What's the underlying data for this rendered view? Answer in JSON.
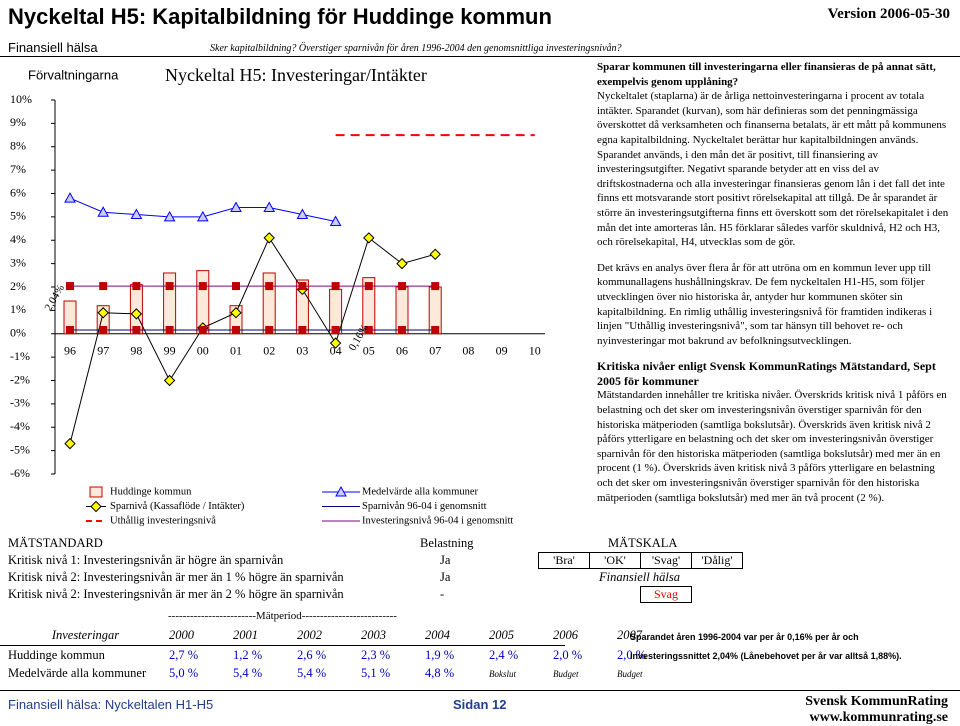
{
  "header": {
    "title": "Nyckeltal H5: Kapitalbildning för Huddinge kommun",
    "version": "Version 2006-05-30",
    "section": "Finansiell hälsa",
    "question": "Sker kapitalbildning? Överstiger sparnivån för åren 1996-2004 den genomsnittliga investeringsnivån?"
  },
  "chart_data": {
    "type": "bar",
    "title": "Nyckeltal H5: Investeringar/Intäkter",
    "corner_label": "Förvaltningarna",
    "categories": [
      "96",
      "97",
      "98",
      "99",
      "00",
      "01",
      "02",
      "03",
      "04",
      "05",
      "06",
      "07",
      "08",
      "09",
      "10"
    ],
    "series": [
      {
        "name": "Huddinge kommun",
        "kind": "bar",
        "color": "#c00000",
        "fill": "#fde9d9",
        "values": [
          1.4,
          1.2,
          2.1,
          2.6,
          2.7,
          1.2,
          2.6,
          2.3,
          1.9,
          2.4,
          2.0,
          2.0,
          null,
          null,
          null
        ]
      },
      {
        "name": "Medelvärde alla kommuner",
        "kind": "line",
        "marker": "triangle",
        "color": "#0000ff",
        "fill": "#ccccff",
        "values": [
          5.8,
          5.2,
          5.1,
          5.0,
          5.0,
          5.4,
          5.4,
          5.1,
          4.8,
          null,
          null,
          null,
          null,
          null,
          null
        ]
      },
      {
        "name": "Sparnivå (Kassaflöde / Intäkter)",
        "kind": "line",
        "marker": "diamond",
        "color": "#000000",
        "fill": "#ffff00",
        "values": [
          -4.7,
          0.9,
          0.85,
          -2.0,
          0.25,
          0.9,
          4.1,
          1.9,
          -0.4,
          4.1,
          3.0,
          3.4,
          null,
          null,
          null
        ]
      },
      {
        "name": "Sparnivån 96-04 i genomsnitt",
        "kind": "line",
        "marker": "square",
        "color": "#000080",
        "fill": "#c00000",
        "values": [
          0.16,
          0.16,
          0.16,
          0.16,
          0.16,
          0.16,
          0.16,
          0.16,
          0.16,
          0.16,
          0.16,
          0.16,
          null,
          null,
          null
        ]
      },
      {
        "name": "Uthållig investeringsnivå",
        "kind": "dashed",
        "color": "#ff0000",
        "values": [
          null,
          null,
          null,
          null,
          null,
          null,
          null,
          null,
          8.5,
          8.5,
          8.5,
          8.5,
          8.5,
          8.5,
          8.5
        ]
      },
      {
        "name": "Investeringsnivå 96-04 i genomsnitt",
        "kind": "line",
        "marker": "square",
        "color": "#800080",
        "fill": "#c00000",
        "values": [
          2.04,
          2.04,
          2.04,
          2.04,
          2.04,
          2.04,
          2.04,
          2.04,
          2.04,
          2.04,
          2.04,
          2.04,
          null,
          null,
          null
        ]
      }
    ],
    "annotations": [
      "2,04%",
      "0,16%"
    ],
    "ylim": [
      -6,
      10
    ],
    "yticks": [
      {
        "value": 10,
        "label": "10%"
      },
      {
        "value": 9,
        "label": "9%"
      },
      {
        "value": 8,
        "label": "8%"
      },
      {
        "value": 7,
        "label": "7%"
      },
      {
        "value": 6,
        "label": "6%"
      },
      {
        "value": 5,
        "label": "5%"
      },
      {
        "value": 4,
        "label": "4%"
      },
      {
        "value": 3,
        "label": "3%"
      },
      {
        "value": 2,
        "label": "2%"
      },
      {
        "value": 1,
        "label": "1%"
      },
      {
        "value": 0,
        "label": "0%"
      },
      {
        "value": -1,
        "label": "-1%"
      },
      {
        "value": -2,
        "label": "-2%"
      },
      {
        "value": -3,
        "label": "-3%"
      },
      {
        "value": -4,
        "label": "-4%"
      },
      {
        "value": -5,
        "label": "-5%"
      },
      {
        "value": -6,
        "label": "-6%"
      }
    ]
  },
  "text": {
    "lead": "Sparar kommunen till investeringarna eller finansieras de på annat sätt, exempelvis genom upplåning?",
    "body": "Nyckeltalet (staplarna) är de årliga nettoinvesteringarna i procent av totala intäkter. Sparandet (kurvan), som här definieras som det penningmässiga överskottet då verksamheten och finanserna betalats, är ett mått på kommunens egna kapitalbildning. Nyckeltalet berättar hur kapitalbildningen används. Sparandet används, i den mån det är positivt, till finansiering av investeringsutgifter. Negativt sparande betyder att en viss del av driftskostnaderna och alla investeringar finansieras genom lån i det fall det inte finns ett motsvarande stort positivt rörelsekapital att tillgå. De år sparandet är större än investeringsutgifterna finns ett överskott som det rörelsekapitalet i den mån det inte amorteras lån. H5 förklarar således varför skuldnivå, H2 och H3, och rörelsekapital, H4, utvecklas som de gör.",
    "analysis": "Det krävs en analys över flera år för att utröna om en kommun lever upp till kommunallagens hushållningskrav. De fem nyckeltalen H1-H5, som följer utvecklingen över nio historiska år, antyder hur kommunen sköter sin kapitalbildning. En rimlig uthållig investeringsnivå för framtiden indikeras i linjen \"Uthållig investeringsnivå\", som tar hänsyn till behovet re- och nyinvesteringar mot bakrund av befolkningsutvecklingen.",
    "levels_heading": "Kritiska nivåer enligt Svensk KommunRatings Mätstandard, Sept 2005 för kommuner",
    "levels": "Mätstandarden innehåller tre kritiska nivåer. Överskrids kritisk nivå 1 påförs en belastning och det sker om investeringsnivån överstiger sparnivån för den historiska mätperioden (samtliga bokslutsår). Överskrids även kritisk nivå 2 påförs ytterligare en belastning och det sker om investeringsnivån överstiger sparnivån för den historiska mätperioden (samtliga bokslutsår) med mer än en procent (1 %). Överskrids även kritisk nivå 3 påförs ytterligare en belastning och det sker om investeringsnivån överstiger sparnivån för den historiska mätperioden (samtliga bokslutsår) med mer än två procent (2 %)."
  },
  "standard": {
    "header": [
      "MÄTSTANDARD",
      "Belastning"
    ],
    "rows": [
      [
        "Kritisk nivå 1: Investeringsnivån är högre än sparnivån",
        "Ja"
      ],
      [
        "Kritisk nivå 2: Investeringsnivån är mer än 1 % högre än sparnivån",
        "Ja"
      ],
      [
        "Kritisk nivå 2: Investeringsnivån är mer än 2 % högre än sparnivån",
        "-"
      ]
    ],
    "scale_title": "MÄTSKALA",
    "scale": [
      "'Bra'",
      "'OK'",
      "'Svag'",
      "'Dålig'"
    ],
    "scale_name": "Finansiell hälsa",
    "result": "Svag"
  },
  "period_table": {
    "period": "------------------------Mätperiod--------------------------",
    "header": [
      "Investeringar",
      "2000",
      "2001",
      "2002",
      "2003",
      "2004",
      "2005",
      "2006",
      "2007"
    ],
    "rows": [
      [
        "Huddinge kommun",
        "2,7 %",
        "1,2 %",
        "2,6 %",
        "2,3 %",
        "1,9 %",
        "2,4 %",
        "2,0 %",
        "2,0 %"
      ],
      [
        "Medelvärde alla kommuner",
        "5,0 %",
        "5,4 %",
        "5,4 %",
        "5,1 %",
        "4,8 %",
        "Bokslut",
        "Budget",
        "Budget"
      ]
    ],
    "notes": [
      "Sparandet åren 1996-2004 var per år 0,16% per år och",
      "investeringssnittet 2,04% (Lånebehovet per år var alltså 1,88%)."
    ]
  },
  "footer": {
    "left": "Finansiell hälsa: Nyckeltalen H1-H5",
    "page": "Sidan 12",
    "org": "Svensk KommunRating",
    "url": "www.kommunrating.se"
  }
}
